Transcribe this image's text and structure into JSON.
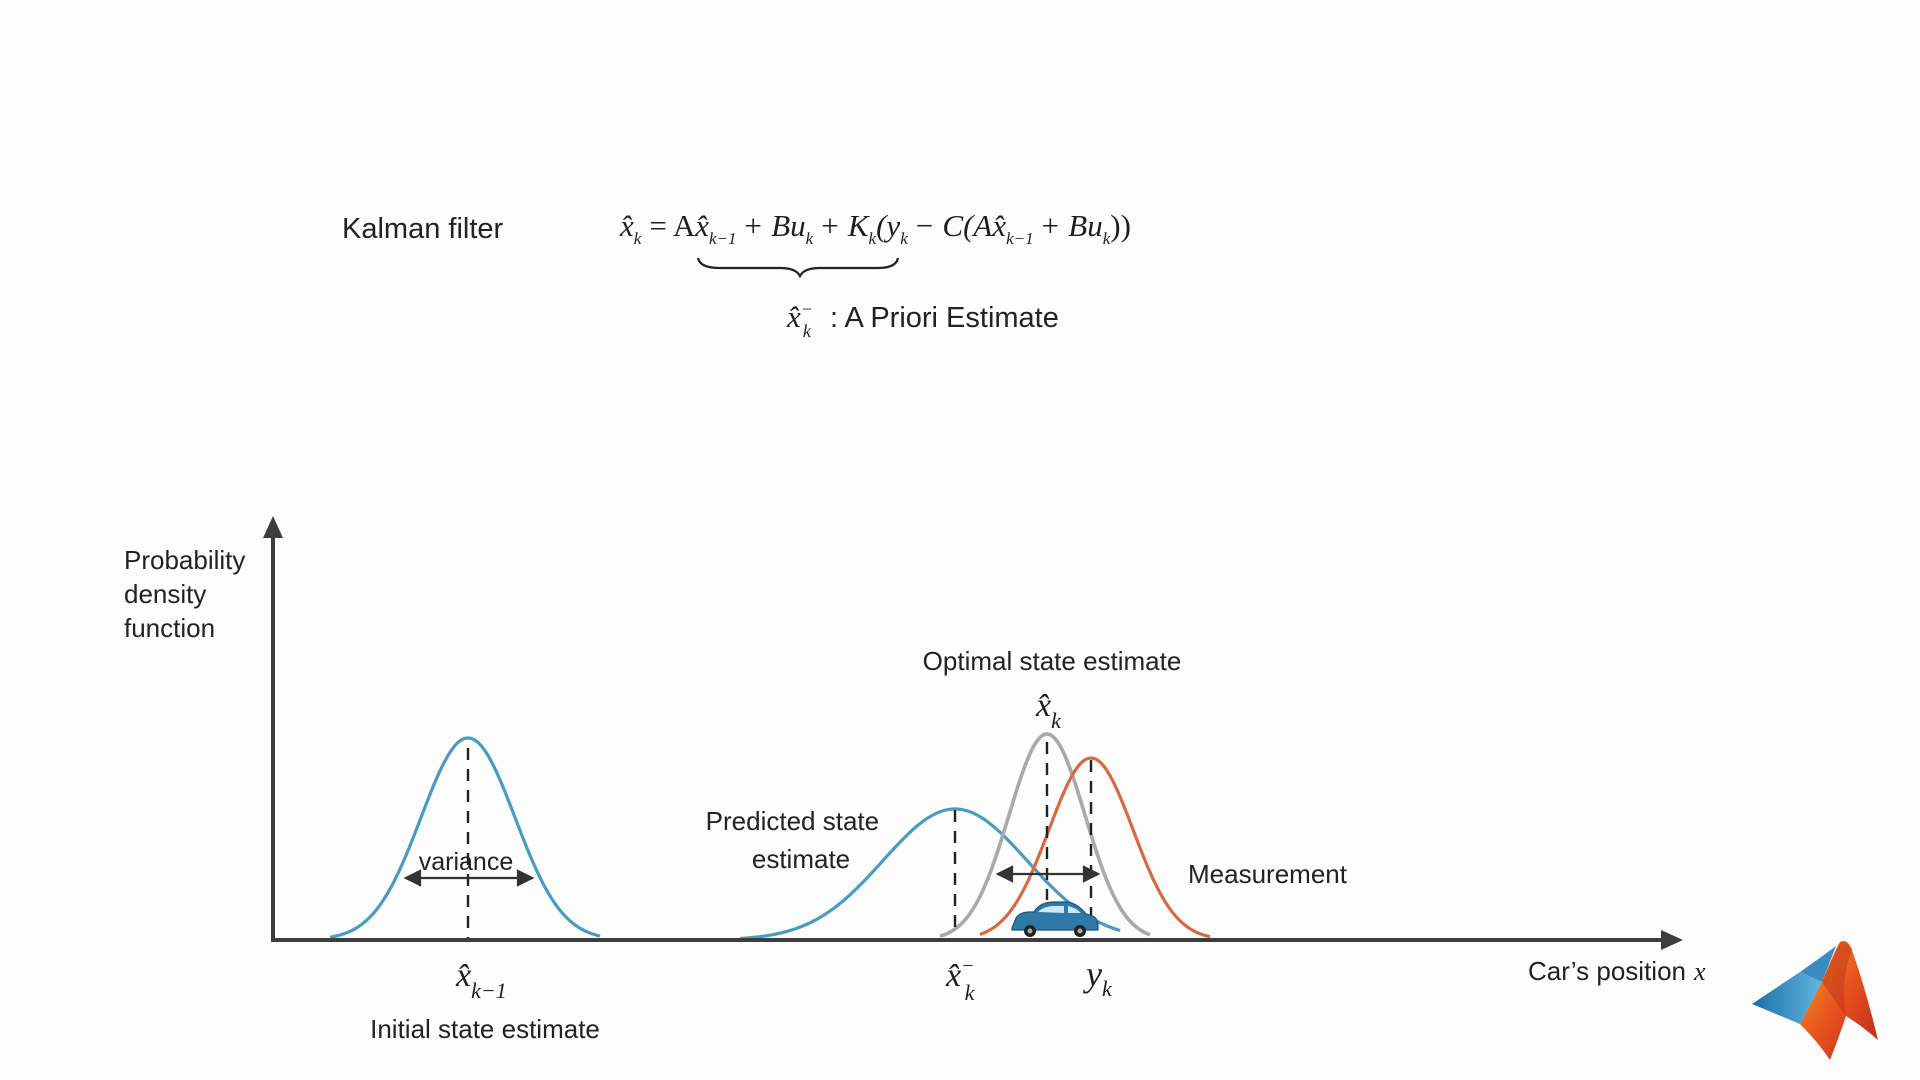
{
  "header": {
    "title": "Kalman filter",
    "apriori_label": ": A Priori Estimate"
  },
  "equation": {
    "lhs": "x̂",
    "lhs_sub": "k",
    "p1": "= A",
    "p2": "x̂",
    "p2_sub": "k−1",
    "p3": "+ B",
    "p4": "u",
    "p4_sub": "k",
    "p5": "+ K",
    "p5_sub": "k",
    "p6": "(y",
    "p6_sub": "k",
    "p7": "− C(A",
    "p8": "x̂",
    "p8_sub": "k−1",
    "p9": "+ B",
    "p10": "u",
    "p10_sub": "k",
    "p11": "))",
    "apriori_symbol": "x̂",
    "apriori_sup": "−",
    "apriori_sub": "k"
  },
  "diagram": {
    "y_axis_label": [
      "Probability",
      "density",
      "function"
    ],
    "x_axis_label": "Car’s position",
    "x_axis_var": "x",
    "variance_label": "variance",
    "predicted_label": [
      "Predicted state",
      "estimate"
    ],
    "optimal_label": "Optimal state estimate",
    "measurement_label": "Measurement",
    "initial_label": "Initial state estimate",
    "x_prev": {
      "symbol": "x̂",
      "sub": "k−1"
    },
    "x_prior": {
      "symbol": "x̂",
      "sup": "−",
      "sub": "k"
    },
    "x_opt": {
      "symbol": "x̂",
      "sub": "k"
    },
    "y_meas": {
      "symbol": "y",
      "sub": "k"
    },
    "colors": {
      "predict": "#4a9bc4",
      "optimal": "#a9a9a9",
      "measurement": "#d86a40",
      "axis": "#3d3d3d",
      "car": "#2f79a8"
    }
  },
  "logo": {
    "icon": "matlab-membrane-logo"
  }
}
